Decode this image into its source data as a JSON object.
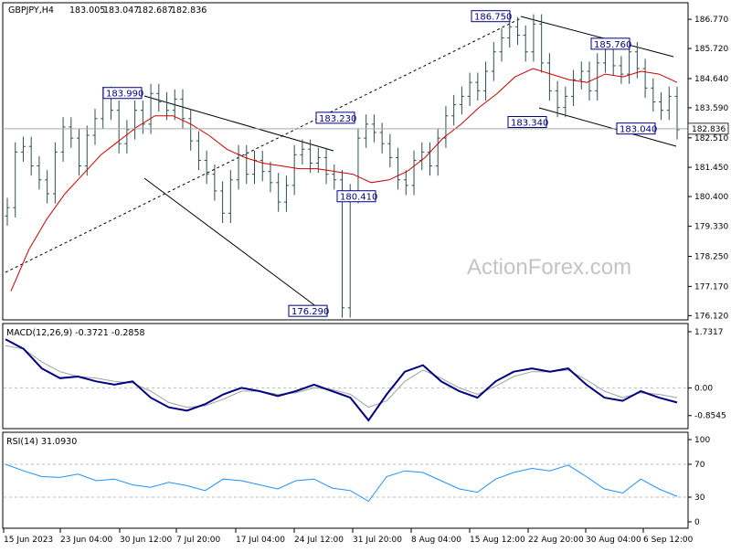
{
  "chart_data": {
    "type": "candlestick",
    "symbol": "GBPJPY,H4",
    "ohlc": {
      "open": "183.005",
      "high": "183.047",
      "low": "182.687",
      "close": "182.836"
    },
    "last_price_label": "182.836",
    "last_price": 182.836,
    "watermark": "ActionForex.com",
    "price_axis": {
      "ylim": [
        176.0,
        187.2
      ],
      "ticks": [
        "186.770",
        "185.720",
        "184.640",
        "183.590",
        "182.510",
        "181.450",
        "180.400",
        "179.330",
        "178.250",
        "177.170",
        "176.120"
      ]
    },
    "x_axis_labels": [
      "15 Jun 2023",
      "23 Jun 04:00",
      "30 Jun 12:00",
      "7 Jul 20:00",
      "17 Jul 04:00",
      "24 Jul 12:00",
      "31 Jul 20:00",
      "8 Aug 04:00",
      "15 Aug 12:00",
      "22 Aug 20:00",
      "30 Aug 04:00",
      "6 Sep 12:00"
    ],
    "annotations": [
      {
        "label": "183.990",
        "price": 183.99
      },
      {
        "label": "176.290",
        "price": 176.29
      },
      {
        "label": "183.230",
        "price": 183.23
      },
      {
        "label": "180.410",
        "price": 180.41
      },
      {
        "label": "186.750",
        "price": 186.75
      },
      {
        "label": "183.340",
        "price": 183.34
      },
      {
        "label": "185.760",
        "price": 185.76
      },
      {
        "label": "183.040",
        "price": 183.04
      }
    ],
    "close_series": [
      180.0,
      182.0,
      182.2,
      181.5,
      181.0,
      180.5,
      182.0,
      182.9,
      182.5,
      181.5,
      182.6,
      183.2,
      184.0,
      183.5,
      182.3,
      182.8,
      183.5,
      183.0,
      184.1,
      183.8,
      183.5,
      183.9,
      183.2,
      182.4,
      181.7,
      181.2,
      180.6,
      179.8,
      181.0,
      181.9,
      181.2,
      181.7,
      181.3,
      180.9,
      180.2,
      180.8,
      181.9,
      182.1,
      181.6,
      181.8,
      181.2,
      181.0,
      176.4,
      180.5,
      182.5,
      183.0,
      182.7,
      182.3,
      181.8,
      181.0,
      180.8,
      181.7,
      182.0,
      181.5,
      182.5,
      183.3,
      183.7,
      184.0,
      184.5,
      184.2,
      184.9,
      185.6,
      186.1,
      186.5,
      186.2,
      185.6,
      186.6,
      185.2,
      184.2,
      183.6,
      184.0,
      184.6,
      184.9,
      184.2,
      185.2,
      185.7,
      185.1,
      184.8,
      185.6,
      185.0,
      184.3,
      183.8,
      183.5,
      184.0,
      182.8
    ],
    "ma_series": [
      177.0,
      178.5,
      179.6,
      180.5,
      181.2,
      181.9,
      182.4,
      182.9,
      183.3,
      183.3,
      183.0,
      182.6,
      182.1,
      181.8,
      181.6,
      181.5,
      181.4,
      181.4,
      181.3,
      181.2,
      180.9,
      181.0,
      181.3,
      181.8,
      182.5,
      183.0,
      183.6,
      184.1,
      184.7,
      185.0,
      184.8,
      184.6,
      184.5,
      184.8,
      184.7,
      184.9,
      184.8,
      184.5
    ],
    "macd": {
      "label": "MACD(12,26,9) -0.3721 -0.2858",
      "ticks": [
        "1.7317",
        "0.00",
        "-0.8545"
      ],
      "ylim": [
        -1.2,
        1.9
      ],
      "macd_values": [
        1.5,
        1.2,
        0.6,
        0.3,
        0.35,
        0.2,
        0.1,
        0.2,
        -0.3,
        -0.6,
        -0.7,
        -0.5,
        -0.2,
        0.0,
        -0.1,
        -0.25,
        -0.1,
        0.1,
        -0.1,
        -0.3,
        -1.0,
        -0.2,
        0.5,
        0.7,
        0.2,
        -0.1,
        -0.3,
        0.2,
        0.5,
        0.6,
        0.5,
        0.6,
        0.1,
        -0.3,
        -0.4,
        -0.1,
        -0.3,
        -0.45
      ],
      "signal_values": [
        1.3,
        1.2,
        0.8,
        0.5,
        0.35,
        0.3,
        0.2,
        0.15,
        -0.1,
        -0.45,
        -0.6,
        -0.55,
        -0.35,
        -0.1,
        -0.1,
        -0.2,
        -0.15,
        0.0,
        -0.05,
        -0.2,
        -0.6,
        -0.4,
        0.2,
        0.55,
        0.3,
        0.0,
        -0.2,
        0.05,
        0.35,
        0.5,
        0.5,
        0.55,
        0.25,
        -0.1,
        -0.3,
        -0.15,
        -0.2,
        -0.3
      ]
    },
    "rsi": {
      "label": "RSI(14) 31.0930",
      "ticks": [
        "100",
        "70",
        "30",
        "0"
      ],
      "ylim": [
        0,
        100
      ],
      "levels": [
        70,
        30
      ],
      "values": [
        70,
        62,
        55,
        54,
        58,
        50,
        52,
        45,
        42,
        48,
        44,
        38,
        52,
        50,
        45,
        40,
        50,
        52,
        41,
        38,
        25,
        55,
        62,
        60,
        50,
        40,
        36,
        52,
        60,
        65,
        62,
        69,
        55,
        40,
        35,
        52,
        40,
        31
      ]
    }
  }
}
